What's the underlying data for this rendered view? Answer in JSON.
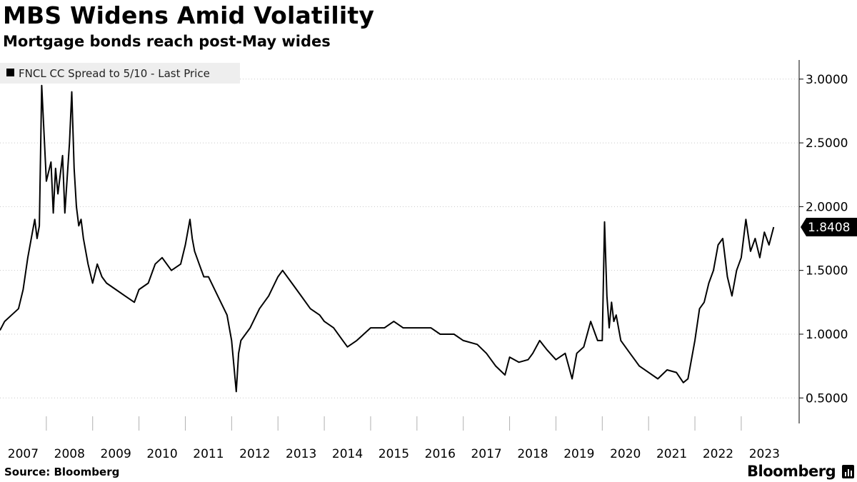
{
  "title": "MBS Widens Amid Volatility",
  "subtitle": "Mortgage bonds reach post-May wides",
  "source": "Source: Bloomberg",
  "brand": "Bloomberg",
  "colors": {
    "line": "#000000",
    "grid": "#c8c8c8",
    "legend_bg": "#eeeeee",
    "last_label_bg": "#000000",
    "last_label_text": "#ffffff"
  },
  "icons": {
    "legend": "black-square-icon",
    "logo_badge": "bar-chart-icon"
  },
  "chart_data": {
    "type": "line",
    "title": "MBS Widens Amid Volatility",
    "subtitle": "Mortgage bonds reach post-May wides",
    "legend": "FNCL CC Spread to 5/10 - Last Price",
    "legend_position": "top-left",
    "last_value_label": "1.8408",
    "y_axis_side": "right",
    "ylim": [
      0.3,
      3.15
    ],
    "yticks": [
      0.5,
      1.0,
      1.5,
      2.0,
      2.5,
      3.0
    ],
    "ytick_labels": [
      "0.5000",
      "1.0000",
      "1.5000",
      "2.0000",
      "2.5000",
      "3.0000"
    ],
    "xlim": [
      2007.0,
      2024.25
    ],
    "xticks": [
      2007,
      2008,
      2009,
      2010,
      2011,
      2012,
      2013,
      2014,
      2015,
      2016,
      2017,
      2018,
      2019,
      2020,
      2021,
      2022,
      2023
    ],
    "xtick_labels": [
      "2007",
      "2008",
      "2009",
      "2010",
      "2011",
      "2012",
      "2013",
      "2014",
      "2015",
      "2016",
      "2017",
      "2018",
      "2019",
      "2020",
      "2021",
      "2022",
      "2023"
    ],
    "grid": "horizontal-dotted",
    "series": [
      {
        "name": "FNCL CC Spread to 5/10 - Last Price",
        "x": [
          2007.0,
          2007.1,
          2007.25,
          2007.4,
          2007.5,
          2007.6,
          2007.7,
          2007.75,
          2007.8,
          2007.85,
          2007.9,
          2008.0,
          2008.1,
          2008.15,
          2008.2,
          2008.25,
          2008.35,
          2008.4,
          2008.5,
          2008.55,
          2008.6,
          2008.65,
          2008.7,
          2008.75,
          2008.8,
          2008.9,
          2009.0,
          2009.1,
          2009.2,
          2009.3,
          2009.5,
          2009.7,
          2009.9,
          2010.0,
          2010.2,
          2010.35,
          2010.5,
          2010.7,
          2010.9,
          2011.0,
          2011.1,
          2011.15,
          2011.2,
          2011.3,
          2011.4,
          2011.5,
          2011.7,
          2011.9,
          2012.0,
          2012.1,
          2012.15,
          2012.2,
          2012.3,
          2012.4,
          2012.6,
          2012.8,
          2013.0,
          2013.1,
          2013.3,
          2013.5,
          2013.7,
          2013.9,
          2014.0,
          2014.2,
          2014.4,
          2014.5,
          2014.7,
          2015.0,
          2015.3,
          2015.5,
          2015.7,
          2016.0,
          2016.3,
          2016.5,
          2016.8,
          2017.0,
          2017.3,
          2017.5,
          2017.7,
          2017.9,
          2018.0,
          2018.2,
          2018.4,
          2018.5,
          2018.65,
          2018.8,
          2019.0,
          2019.2,
          2019.35,
          2019.45,
          2019.6,
          2019.75,
          2019.9,
          2020.0,
          2020.05,
          2020.1,
          2020.15,
          2020.2,
          2020.25,
          2020.3,
          2020.4,
          2020.6,
          2020.8,
          2021.0,
          2021.2,
          2021.4,
          2021.6,
          2021.75,
          2021.85,
          2022.0,
          2022.1,
          2022.2,
          2022.3,
          2022.4,
          2022.5,
          2022.6,
          2022.7,
          2022.8,
          2022.9,
          2023.0,
          2023.1,
          2023.2,
          2023.3,
          2023.4,
          2023.5,
          2023.6,
          2023.7
        ],
        "values": [
          1.03,
          1.1,
          1.15,
          1.2,
          1.35,
          1.6,
          1.8,
          1.9,
          1.75,
          1.85,
          2.95,
          2.2,
          2.35,
          1.95,
          2.3,
          2.1,
          2.4,
          1.95,
          2.5,
          2.9,
          2.3,
          2.0,
          1.85,
          1.9,
          1.75,
          1.55,
          1.4,
          1.55,
          1.45,
          1.4,
          1.35,
          1.3,
          1.25,
          1.35,
          1.4,
          1.55,
          1.6,
          1.5,
          1.55,
          1.7,
          1.9,
          1.75,
          1.65,
          1.55,
          1.45,
          1.45,
          1.3,
          1.15,
          0.95,
          0.55,
          0.85,
          0.95,
          1.0,
          1.05,
          1.2,
          1.3,
          1.45,
          1.5,
          1.4,
          1.3,
          1.2,
          1.15,
          1.1,
          1.05,
          0.95,
          0.9,
          0.95,
          1.05,
          1.05,
          1.1,
          1.05,
          1.05,
          1.05,
          1.0,
          1.0,
          0.95,
          0.92,
          0.85,
          0.75,
          0.68,
          0.82,
          0.78,
          0.8,
          0.85,
          0.95,
          0.88,
          0.8,
          0.85,
          0.65,
          0.85,
          0.9,
          1.1,
          0.95,
          0.95,
          1.88,
          1.3,
          1.05,
          1.25,
          1.1,
          1.15,
          0.95,
          0.85,
          0.75,
          0.7,
          0.65,
          0.72,
          0.7,
          0.62,
          0.65,
          0.95,
          1.2,
          1.25,
          1.4,
          1.5,
          1.7,
          1.75,
          1.45,
          1.3,
          1.5,
          1.6,
          1.9,
          1.65,
          1.75,
          1.6,
          1.8,
          1.7,
          1.84
        ]
      }
    ]
  }
}
